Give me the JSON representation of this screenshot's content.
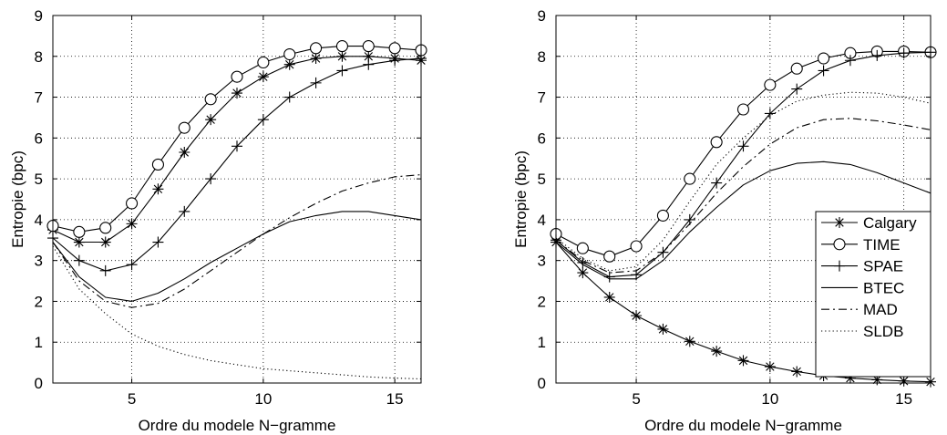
{
  "chart_data": [
    {
      "type": "line",
      "xlabel": "Ordre du modele N−gramme",
      "ylabel": "Entropie (bpc)",
      "xlim": [
        2,
        16
      ],
      "ylim": [
        0,
        9
      ],
      "xticks": [
        5,
        10,
        15
      ],
      "yticks": [
        0,
        1,
        2,
        3,
        4,
        5,
        6,
        7,
        8,
        9
      ],
      "grid": true,
      "x": [
        2,
        3,
        4,
        5,
        6,
        7,
        8,
        9,
        10,
        11,
        12,
        13,
        14,
        15,
        16
      ],
      "series": [
        {
          "name": "Calgary",
          "marker": "star",
          "dash": "solid",
          "values": [
            3.75,
            3.45,
            3.45,
            3.9,
            4.75,
            5.65,
            6.45,
            7.1,
            7.5,
            7.8,
            7.95,
            8.0,
            8.0,
            7.95,
            7.9
          ]
        },
        {
          "name": "TIME",
          "marker": "circle",
          "dash": "solid",
          "values": [
            3.85,
            3.7,
            3.8,
            4.4,
            5.35,
            6.25,
            6.95,
            7.5,
            7.85,
            8.05,
            8.2,
            8.25,
            8.25,
            8.2,
            8.15
          ]
        },
        {
          "name": "SPAE",
          "marker": "plus",
          "dash": "solid",
          "values": [
            3.55,
            3.0,
            2.75,
            2.9,
            3.45,
            4.2,
            5.0,
            5.8,
            6.45,
            7.0,
            7.35,
            7.65,
            7.8,
            7.9,
            7.95
          ]
        },
        {
          "name": "BTEC",
          "marker": "none",
          "dash": "solid",
          "values": [
            3.45,
            2.6,
            2.1,
            2.0,
            2.2,
            2.55,
            2.95,
            3.3,
            3.65,
            3.95,
            4.1,
            4.2,
            4.2,
            4.1,
            4.0
          ]
        },
        {
          "name": "MAD",
          "marker": "none",
          "dash": "dashdot",
          "values": [
            3.45,
            2.5,
            2.0,
            1.85,
            1.95,
            2.3,
            2.75,
            3.2,
            3.65,
            4.05,
            4.4,
            4.7,
            4.9,
            5.05,
            5.1
          ]
        },
        {
          "name": "SLDB",
          "marker": "none",
          "dash": "dotted",
          "values": [
            3.35,
            2.3,
            1.7,
            1.2,
            0.9,
            0.7,
            0.55,
            0.45,
            0.35,
            0.3,
            0.25,
            0.2,
            0.15,
            0.12,
            0.1
          ]
        }
      ]
    },
    {
      "type": "line",
      "xlabel": "Ordre du modele N−gramme",
      "ylabel": "Entropie (bpc)",
      "xlim": [
        2,
        16
      ],
      "ylim": [
        0,
        9
      ],
      "xticks": [
        5,
        10,
        15
      ],
      "yticks": [
        0,
        1,
        2,
        3,
        4,
        5,
        6,
        7,
        8,
        9
      ],
      "grid": true,
      "legend": "middle-right",
      "x": [
        2,
        3,
        4,
        5,
        6,
        7,
        8,
        9,
        10,
        11,
        12,
        13,
        14,
        15,
        16
      ],
      "series": [
        {
          "name": "Calgary",
          "marker": "star",
          "dash": "solid",
          "values": [
            3.45,
            2.7,
            2.1,
            1.65,
            1.32,
            1.02,
            0.78,
            0.55,
            0.4,
            0.28,
            0.18,
            0.12,
            0.08,
            0.05,
            0.03
          ]
        },
        {
          "name": "TIME",
          "marker": "circle",
          "dash": "solid",
          "values": [
            3.65,
            3.3,
            3.1,
            3.35,
            4.1,
            5.0,
            5.9,
            6.7,
            7.3,
            7.7,
            7.95,
            8.08,
            8.12,
            8.12,
            8.1
          ]
        },
        {
          "name": "SPAE",
          "marker": "plus",
          "dash": "solid",
          "values": [
            3.5,
            2.95,
            2.6,
            2.65,
            3.2,
            4.0,
            4.9,
            5.8,
            6.6,
            7.2,
            7.65,
            7.9,
            8.02,
            8.08,
            8.1
          ]
        },
        {
          "name": "BTEC",
          "marker": "none",
          "dash": "solid",
          "values": [
            3.45,
            2.9,
            2.55,
            2.55,
            3.0,
            3.7,
            4.3,
            4.85,
            5.2,
            5.38,
            5.42,
            5.35,
            5.15,
            4.9,
            4.65
          ]
        },
        {
          "name": "MAD",
          "marker": "none",
          "dash": "dashdot",
          "values": [
            3.5,
            3.0,
            2.7,
            2.75,
            3.2,
            3.9,
            4.65,
            5.3,
            5.85,
            6.25,
            6.45,
            6.48,
            6.42,
            6.32,
            6.2
          ]
        },
        {
          "name": "SLDB",
          "marker": "none",
          "dash": "dotted",
          "values": [
            3.55,
            3.05,
            2.75,
            2.85,
            3.5,
            4.45,
            5.35,
            6.0,
            6.55,
            6.9,
            7.05,
            7.12,
            7.1,
            7.0,
            6.85
          ]
        }
      ]
    }
  ]
}
